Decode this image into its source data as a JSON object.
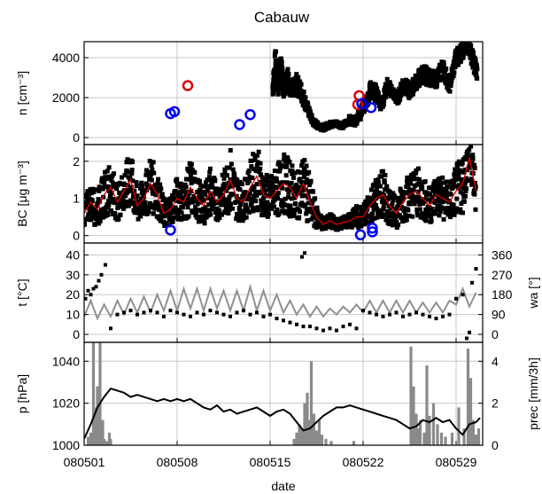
{
  "title": "Cabauw",
  "xlabel": "date",
  "x_ticks": [
    "080501",
    "080508",
    "080515",
    "080522",
    "080529"
  ],
  "chart_data": [
    {
      "type": "scatter",
      "ylabel": "n [cm⁻³]",
      "ylim": [
        -350,
        4800
      ],
      "yticks": [
        "0",
        "2000",
        "4000"
      ],
      "grid": true,
      "dense_series": {
        "name": "",
        "color": "#000000",
        "x_day": [
          14.2,
          14.4,
          14.6,
          14.8,
          15.0,
          15.3,
          15.6,
          16.0,
          16.4,
          16.8,
          17.2,
          17.6,
          18.0,
          18.5,
          19.0,
          19.5,
          20.0,
          20.4,
          20.8,
          21.2,
          21.6,
          22.0,
          22.4,
          22.8,
          23.2,
          23.6,
          24.0,
          24.5,
          25.0,
          25.5,
          26.0,
          26.5,
          27.0,
          27.5,
          28.0,
          28.5,
          28.9,
          29.3,
          29.6
        ],
        "y": [
          2500,
          3600,
          2800,
          3400,
          2600,
          3000,
          2300,
          2700,
          2200,
          1500,
          800,
          600,
          500,
          650,
          700,
          600,
          900,
          800,
          1200,
          1800,
          2400,
          2200,
          1600,
          2600,
          2300,
          1900,
          2700,
          2300,
          2800,
          3200,
          3000,
          2900,
          3500,
          2600,
          4000,
          4400,
          4700,
          3800,
          3300
        ],
        "spread": [
          500,
          900,
          700,
          800,
          600,
          600,
          400,
          500,
          500,
          300,
          200,
          150,
          150,
          150,
          150,
          150,
          200,
          200,
          300,
          400,
          500,
          400,
          300,
          400,
          300,
          300,
          400,
          400,
          400,
          500,
          400,
          400,
          500,
          400,
          500,
          500,
          400,
          500,
          400
        ]
      },
      "blue_circles": {
        "x_day": [
          6.5,
          6.8,
          11.7,
          12.5,
          20.9,
          21.6
        ],
        "y": [
          1200,
          1300,
          650,
          1150,
          1700,
          1500
        ]
      },
      "red_circles": {
        "x_day": [
          7.8,
          20.6,
          20.7
        ],
        "y": [
          2600,
          1650,
          2100
        ]
      }
    },
    {
      "type": "scatter",
      "ylabel": "BC [μg m⁻³]",
      "ylim": [
        -0.2,
        2.45
      ],
      "yticks": [
        "0",
        "1",
        "2"
      ],
      "grid": true,
      "dense_series": {
        "name": "",
        "color": "#000000",
        "x_day": [
          0.0,
          0.5,
          1.0,
          1.5,
          2.0,
          2.5,
          3.0,
          3.5,
          4.0,
          4.5,
          5.0,
          5.5,
          6.0,
          6.5,
          7.0,
          7.5,
          8.0,
          8.5,
          9.0,
          9.5,
          10.0,
          10.5,
          11.0,
          11.5,
          12.0,
          12.5,
          13.0,
          13.5,
          14.0,
          14.5,
          15.0,
          15.5,
          16.0,
          16.5,
          17.0,
          17.5,
          18.0,
          18.5,
          19.0,
          19.5,
          20.0,
          20.5,
          21.0,
          21.5,
          22.0,
          22.5,
          23.0,
          23.5,
          24.0,
          24.5,
          25.0,
          25.5,
          26.0,
          26.5,
          27.0,
          27.5,
          28.0,
          28.5,
          29.0,
          29.5
        ],
        "y": [
          0.6,
          0.9,
          0.7,
          1.1,
          1.3,
          0.9,
          1.2,
          1.5,
          0.8,
          1.0,
          1.4,
          1.1,
          0.6,
          0.7,
          1.0,
          0.9,
          1.3,
          1.0,
          0.8,
          1.2,
          0.9,
          1.1,
          1.5,
          1.0,
          0.9,
          1.3,
          1.6,
          1.1,
          1.0,
          1.2,
          1.4,
          1.3,
          1.0,
          1.4,
          0.9,
          0.5,
          0.3,
          0.4,
          0.3,
          0.35,
          0.4,
          0.5,
          0.5,
          0.8,
          1.0,
          1.1,
          0.8,
          0.6,
          0.9,
          1.1,
          1.2,
          1.0,
          0.8,
          1.1,
          1.0,
          0.9,
          1.2,
          1.4,
          2.1,
          1.2
        ],
        "spread": [
          0.4,
          0.5,
          0.5,
          0.6,
          0.7,
          0.5,
          0.6,
          0.8,
          0.5,
          0.5,
          0.8,
          0.6,
          0.4,
          0.4,
          0.6,
          0.5,
          0.8,
          0.6,
          0.5,
          0.7,
          0.5,
          0.6,
          0.9,
          0.6,
          0.5,
          0.7,
          0.9,
          0.6,
          0.6,
          0.7,
          0.8,
          0.8,
          0.6,
          0.8,
          0.7,
          0.3,
          0.15,
          0.2,
          0.15,
          0.15,
          0.2,
          0.3,
          0.3,
          0.5,
          0.6,
          0.7,
          0.5,
          0.4,
          0.6,
          0.6,
          0.7,
          0.6,
          0.5,
          0.6,
          0.6,
          0.5,
          0.7,
          0.8,
          0.5,
          0.6
        ]
      },
      "line_series": {
        "name": "",
        "color": "#e00000",
        "x_day": [
          0.0,
          0.5,
          1.0,
          1.5,
          2.0,
          2.5,
          3.0,
          3.5,
          4.0,
          4.5,
          5.0,
          5.5,
          6.0,
          6.5,
          7.0,
          7.5,
          8.0,
          8.5,
          9.0,
          9.5,
          10.0,
          10.5,
          11.0,
          11.5,
          12.0,
          12.5,
          13.0,
          13.5,
          14.0,
          14.5,
          15.0,
          15.5,
          16.0,
          16.5,
          17.0,
          17.5,
          18.0,
          18.5,
          19.0,
          19.5,
          20.0,
          20.5,
          21.0,
          21.5,
          22.0,
          22.5,
          23.0,
          23.5,
          24.0,
          24.5,
          25.0,
          25.5,
          26.0,
          26.5,
          27.0,
          27.5,
          28.0,
          28.5,
          29.0,
          29.5
        ],
        "y": [
          0.6,
          0.9,
          0.7,
          1.1,
          1.3,
          0.9,
          1.2,
          1.5,
          0.8,
          1.0,
          1.4,
          1.1,
          0.6,
          0.7,
          1.0,
          0.9,
          1.3,
          1.0,
          0.8,
          1.2,
          0.9,
          1.1,
          1.5,
          1.0,
          0.9,
          1.3,
          1.6,
          1.1,
          1.0,
          1.2,
          1.4,
          1.3,
          1.0,
          1.4,
          0.9,
          0.5,
          0.3,
          0.4,
          0.3,
          0.35,
          0.4,
          0.5,
          0.5,
          0.8,
          1.0,
          1.1,
          0.8,
          0.6,
          0.9,
          1.1,
          1.2,
          1.0,
          0.8,
          1.1,
          1.0,
          0.9,
          1.2,
          1.4,
          2.1,
          1.2
        ]
      },
      "blue_circles": {
        "x_day": [
          6.5,
          20.8,
          21.7,
          21.7
        ],
        "y": [
          0.15,
          0.02,
          0.1,
          0.2
        ]
      }
    },
    {
      "type": "line",
      "ylabel": "t [°C]",
      "ylim": [
        -4,
        46
      ],
      "yticks": [
        "0",
        "10",
        "20",
        "30",
        "40"
      ],
      "y2label": "wa [°]",
      "y2lim": [
        -36,
        414
      ],
      "y2ticks": [
        "0",
        "90",
        "180",
        "270",
        "360"
      ],
      "grid": true,
      "line_series": {
        "name": "",
        "color": "#909090",
        "x_day": [
          0.0,
          0.5,
          1.0,
          1.5,
          2.0,
          2.5,
          3.0,
          3.5,
          4.0,
          4.5,
          5.0,
          5.5,
          6.0,
          6.5,
          7.0,
          7.5,
          8.0,
          8.5,
          9.0,
          9.5,
          10.0,
          10.5,
          11.0,
          11.5,
          12.0,
          12.5,
          13.0,
          13.5,
          14.0,
          14.5,
          15.0,
          15.5,
          16.0,
          16.5,
          17.0,
          17.5,
          18.0,
          18.5,
          19.0,
          19.5,
          20.0,
          20.5,
          21.0,
          21.5,
          22.0,
          22.5,
          23.0,
          23.5,
          24.0,
          24.5,
          25.0,
          25.5,
          26.0,
          26.5,
          27.0,
          27.5,
          28.0,
          28.5,
          29.0,
          29.5
        ],
        "y": [
          9,
          17,
          8,
          15,
          9,
          17,
          10,
          18,
          11,
          19,
          11,
          20,
          12,
          22,
          12,
          23,
          13,
          23,
          12,
          23,
          13,
          22,
          12,
          22,
          12,
          24,
          12,
          22,
          12,
          20,
          11,
          17,
          10,
          15,
          9,
          14,
          9,
          13,
          10,
          14,
          11,
          15,
          11,
          17,
          11,
          17,
          11,
          17,
          11,
          17,
          11,
          16,
          11,
          16,
          11,
          17,
          15,
          23,
          14,
          21
        ]
      },
      "scatter_series": {
        "name": "",
        "color": "#000000",
        "x_day": [
          0.1,
          0.3,
          0.5,
          0.7,
          0.9,
          1.1,
          1.3,
          1.6,
          2.0,
          2.5,
          3.0,
          3.5,
          4.0,
          4.5,
          5.0,
          5.5,
          6.0,
          6.5,
          7.0,
          7.5,
          8.0,
          8.5,
          9.0,
          9.5,
          10.0,
          10.5,
          11.0,
          11.5,
          12.0,
          12.5,
          13.0,
          13.5,
          14.0,
          14.5,
          15.0,
          15.5,
          16.0,
          16.5,
          17.0,
          17.5,
          18.0,
          18.5,
          19.0,
          19.5,
          20.0,
          20.5,
          21.0,
          21.5,
          22.0,
          22.5,
          23.0,
          23.5,
          24.0,
          24.5,
          25.0,
          25.5,
          26.0,
          26.5,
          27.0,
          27.5,
          28.0,
          28.5,
          28.8,
          29.0,
          29.2,
          29.5,
          16.4,
          16.6
        ],
        "y": [
          18,
          22,
          20,
          23,
          24,
          27,
          30,
          35,
          3,
          10,
          11,
          12,
          10,
          11,
          12,
          11,
          9,
          12,
          11,
          10,
          9,
          11,
          10,
          12,
          11,
          10,
          9,
          11,
          12,
          10,
          11,
          9,
          10,
          8,
          7,
          6,
          5,
          4,
          4,
          3,
          2,
          3,
          2,
          4,
          5,
          3,
          12,
          11,
          10,
          9,
          10,
          11,
          9,
          10,
          11,
          10,
          9,
          8,
          9,
          10,
          18,
          20,
          -2,
          1,
          26,
          33,
          39,
          41
        ]
      }
    },
    {
      "type": "line",
      "ylabel": "p [hPa]",
      "ylim": [
        1000,
        1049
      ],
      "yticks": [
        "1000",
        "1020",
        "1040"
      ],
      "y2label": "prec [mm/3h]",
      "y2lim": [
        0,
        4.9
      ],
      "y2ticks": [
        "0",
        "2",
        "4"
      ],
      "grid": true,
      "bar_series": {
        "name": "",
        "color": "#8a8a8a",
        "x_day": [
          0.3,
          0.5,
          0.7,
          0.9,
          1.0,
          1.2,
          1.4,
          1.5,
          1.7,
          1.9,
          2.0,
          15.8,
          16.0,
          16.2,
          16.4,
          16.6,
          16.8,
          17.0,
          17.1,
          17.3,
          17.5,
          17.7,
          17.9,
          18.2,
          18.6,
          20.3,
          24.6,
          24.8,
          25.0,
          25.2,
          25.3,
          25.6,
          25.8,
          26.0,
          26.3,
          26.6,
          26.9,
          27.2,
          27.7,
          28.2,
          28.6,
          28.9,
          29.1,
          29.3,
          29.5,
          29.7
        ],
        "values": [
          0.4,
          0.6,
          5.0,
          1.8,
          2.8,
          5.0,
          1.2,
          0.3,
          0.2,
          0.6,
          0.3,
          0.3,
          0.6,
          1.0,
          0.8,
          2.0,
          2.5,
          1.2,
          4.0,
          1.5,
          0.7,
          1.2,
          0.5,
          0.3,
          0.2,
          0.2,
          4.7,
          2.8,
          1.5,
          0.8,
          1.2,
          0.6,
          3.8,
          1.4,
          2.0,
          1.0,
          0.6,
          0.4,
          0.6,
          1.8,
          0.8,
          4.6,
          3.2,
          1.2,
          0.5,
          0.8
        ]
      },
      "line_series": {
        "name": "",
        "color": "#000000",
        "x_day": [
          0.0,
          0.5,
          1.0,
          1.5,
          2.0,
          2.5,
          3.0,
          3.5,
          4.0,
          4.5,
          5.0,
          5.5,
          6.0,
          6.5,
          7.0,
          7.5,
          8.0,
          8.5,
          9.0,
          9.5,
          10.0,
          10.5,
          11.0,
          11.5,
          12.0,
          12.5,
          13.0,
          13.5,
          14.0,
          14.5,
          15.0,
          15.5,
          16.0,
          16.5,
          17.0,
          17.5,
          18.0,
          18.5,
          19.0,
          19.5,
          20.0,
          20.5,
          21.0,
          21.5,
          22.0,
          22.5,
          23.0,
          23.5,
          24.0,
          24.5,
          25.0,
          25.5,
          26.0,
          26.5,
          27.0,
          27.5,
          28.0,
          28.5,
          29.0,
          29.5,
          29.8
        ],
        "y": [
          1003,
          1010,
          1018,
          1023,
          1027,
          1026,
          1025,
          1023,
          1024,
          1023,
          1022,
          1021,
          1022,
          1021,
          1022,
          1021,
          1022,
          1020,
          1018,
          1017,
          1019,
          1016,
          1017,
          1015,
          1016,
          1017,
          1018,
          1016,
          1014,
          1016,
          1017,
          1015,
          1011,
          1007,
          1008,
          1011,
          1014,
          1016,
          1018,
          1018,
          1019,
          1018,
          1017,
          1016,
          1015,
          1014,
          1013,
          1012,
          1010,
          1008,
          1009,
          1012,
          1011,
          1013,
          1011,
          1012,
          1008,
          1005,
          1010,
          1011,
          1013
        ]
      }
    }
  ]
}
